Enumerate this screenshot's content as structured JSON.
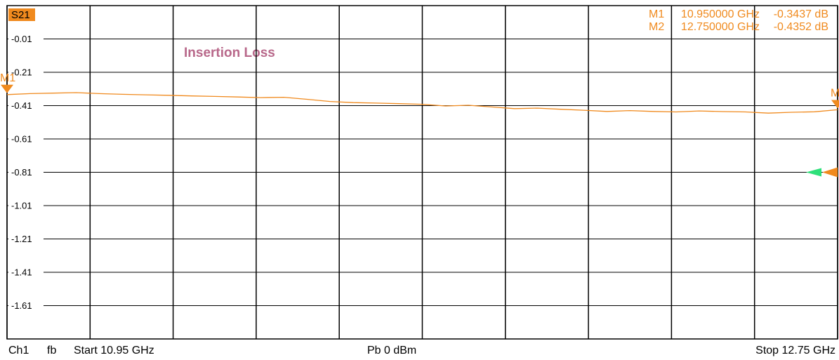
{
  "chart_data": {
    "type": "line",
    "trace": "S21",
    "annotation": "Insertion Loss",
    "x": [
      10.95,
      11.0,
      11.05,
      11.1,
      11.15,
      11.2,
      11.25,
      11.3,
      11.35,
      11.4,
      11.45,
      11.5,
      11.55,
      11.6,
      11.65,
      11.7,
      11.75,
      11.8,
      11.85,
      11.9,
      11.95,
      12.0,
      12.05,
      12.1,
      12.15,
      12.2,
      12.25,
      12.3,
      12.35,
      12.4,
      12.45,
      12.5,
      12.55,
      12.6,
      12.65,
      12.7,
      12.75
    ],
    "series": [
      {
        "name": "S21",
        "color": "#f08a1e",
        "values": [
          -0.344,
          -0.338,
          -0.335,
          -0.332,
          -0.338,
          -0.342,
          -0.345,
          -0.348,
          -0.352,
          -0.355,
          -0.358,
          -0.362,
          -0.36,
          -0.372,
          -0.385,
          -0.392,
          -0.395,
          -0.398,
          -0.402,
          -0.412,
          -0.408,
          -0.418,
          -0.428,
          -0.425,
          -0.432,
          -0.438,
          -0.445,
          -0.44,
          -0.445,
          -0.448,
          -0.442,
          -0.446,
          -0.448,
          -0.455,
          -0.45,
          -0.447,
          -0.435
        ]
      }
    ],
    "xlim": [
      10.95,
      12.75
    ],
    "xticks": [
      10.95,
      11.13,
      11.31,
      11.49,
      11.67,
      11.85,
      12.03,
      12.21,
      12.39,
      12.57,
      12.75
    ],
    "ylim": [
      -1.81,
      0.19
    ],
    "yticks": [
      -0.01,
      -0.21,
      -0.41,
      -0.61,
      -0.81,
      -1.01,
      -1.21,
      -1.41,
      -1.61
    ],
    "grid": true,
    "reference_level": -0.81,
    "markers": [
      {
        "name": "M1",
        "x": 10.95,
        "x_label": "10.950000 GHz",
        "y": -0.3437,
        "y_label": "-0.3437 dB"
      },
      {
        "name": "M2",
        "x": 12.75,
        "x_label": "12.750000 GHz",
        "y": -0.4352,
        "y_label": "-0.4352 dB"
      }
    ],
    "footer": {
      "channel": "Ch1",
      "mode": "fb",
      "start": "Start  10.95 GHz",
      "power": "Pb   0 dBm",
      "stop": "Stop  12.75 GHz"
    }
  }
}
